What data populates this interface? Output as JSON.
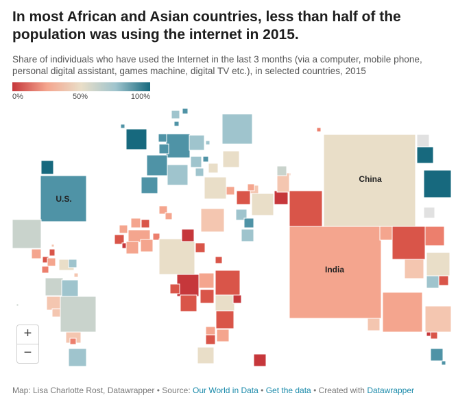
{
  "header": {
    "title": "In most African and Asian countries, less than half of the population was using the internet in 2015.",
    "subtitle": "Share of individuals who have used the Internet in the last 3 months (via a computer, mobile phone, personal digital assistant, games machine, digital TV etc.), in selected countries, 2015"
  },
  "legend": {
    "min_label": "0%",
    "mid_label": "50%",
    "max_label": "100%",
    "colors": [
      "#c6373b",
      "#f4a58e",
      "#e9dec8",
      "#9fc4cd",
      "#17697e"
    ]
  },
  "map": {
    "labels": {
      "us": "U.S.",
      "china": "China",
      "india": "India"
    }
  },
  "controls": {
    "zoom_in": "+",
    "zoom_out": "−"
  },
  "footer": {
    "credit": "Map: Lisa Charlotte Rost, Datawrapper • Source: ",
    "source_link": "Our World in Data",
    "sep1": " • ",
    "get_data_link": "Get the data",
    "sep2": " • Created with ",
    "datawrapper_link": "Datawrapper"
  }
}
